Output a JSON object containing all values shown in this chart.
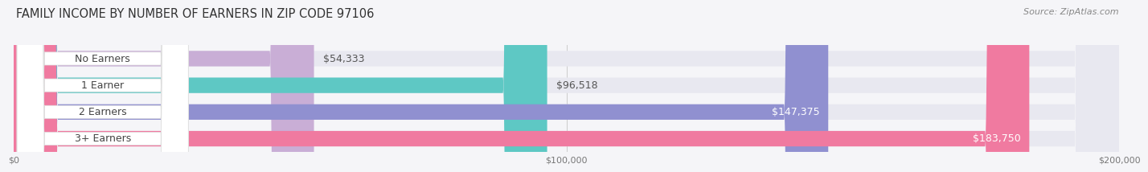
{
  "title": "FAMILY INCOME BY NUMBER OF EARNERS IN ZIP CODE 97106",
  "source": "Source: ZipAtlas.com",
  "categories": [
    "No Earners",
    "1 Earner",
    "2 Earners",
    "3+ Earners"
  ],
  "values": [
    54333,
    96518,
    147375,
    183750
  ],
  "bar_colors": [
    "#c9aed6",
    "#5ec8c4",
    "#9090d0",
    "#f07aa0"
  ],
  "bar_bg_color": "#e8e8f0",
  "label_bg_color": "#ffffff",
  "label_text_color": "#444444",
  "value_label_colors": [
    "#555555",
    "#555555",
    "#ffffff",
    "#ffffff"
  ],
  "value_labels": [
    "$54,333",
    "$96,518",
    "$147,375",
    "$183,750"
  ],
  "xmax": 200000,
  "xticks": [
    0,
    100000,
    200000
  ],
  "xtick_labels": [
    "$0",
    "$100,000",
    "$200,000"
  ],
  "background_color": "#f5f5f8",
  "title_fontsize": 10.5,
  "source_fontsize": 8,
  "cat_label_fontsize": 9,
  "value_fontsize": 9
}
